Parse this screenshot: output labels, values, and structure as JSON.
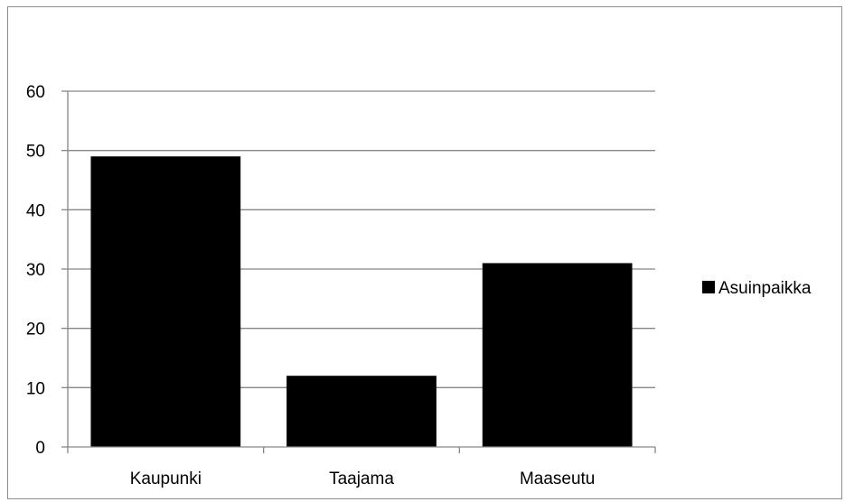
{
  "chart_data": {
    "type": "bar",
    "categories": [
      "Kaupunki",
      "Taajama",
      "Maaseutu"
    ],
    "series": [
      {
        "name": "Asuinpaikka",
        "values": [
          49,
          12,
          31
        ]
      }
    ],
    "y_ticks": [
      "0",
      "10",
      "20",
      "30",
      "40",
      "50",
      "60"
    ],
    "ylim": [
      0,
      60
    ],
    "grid": true,
    "legend_placement": "right",
    "bar_color": "#000000",
    "grid_color": "#868686"
  }
}
